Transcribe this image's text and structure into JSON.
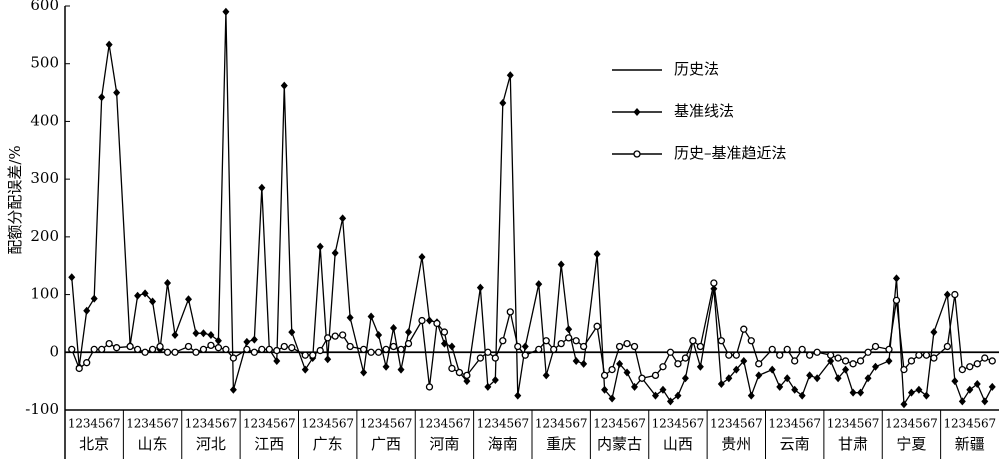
{
  "chart_data": {
    "type": "line",
    "y_label": "配额分配误差/%",
    "groups": [
      "北京",
      "山东",
      "河北",
      "江西",
      "广东",
      "广西",
      "河南",
      "海南",
      "重庆",
      "内蒙古",
      "山西",
      "贵州",
      "云南",
      "甘肃",
      "宁夏",
      "新疆"
    ],
    "sub_categories": [
      "1",
      "2",
      "3",
      "4",
      "5",
      "6",
      "7"
    ],
    "ylim": [
      -100,
      600
    ],
    "yticks": [
      -100,
      0,
      100,
      200,
      300,
      400,
      500,
      600
    ],
    "legend_position": "upper right",
    "series": [
      {
        "name": "历史法",
        "color": "#000000",
        "marker": "none",
        "values": [
          0,
          0,
          0,
          0,
          0,
          0,
          0,
          0,
          0,
          0,
          0,
          0,
          0,
          0,
          0,
          0,
          0,
          0,
          0,
          0,
          0,
          0,
          0,
          0,
          0,
          0,
          0,
          0,
          0,
          0,
          0,
          0,
          0,
          0,
          0,
          0,
          0,
          0,
          0,
          0,
          0,
          0,
          0,
          0,
          0,
          0,
          0,
          0,
          0,
          0,
          0,
          0,
          0,
          0,
          0,
          0,
          0,
          0,
          0,
          0,
          0,
          0,
          0,
          0,
          0,
          0,
          0,
          0,
          0,
          0,
          0,
          0,
          0,
          0,
          0,
          0,
          0,
          0,
          0,
          0,
          0,
          0,
          0,
          0,
          0,
          0,
          0,
          0,
          0,
          0,
          0,
          0,
          0,
          0,
          0,
          0,
          0,
          0,
          0,
          0,
          0,
          0,
          0,
          0,
          0,
          0,
          0,
          0,
          0,
          0,
          0,
          0
        ]
      },
      {
        "name": "基准线法",
        "color": "#000000",
        "marker": "diamond",
        "values": [
          130,
          -25,
          72,
          93,
          442,
          533,
          450,
          12,
          98,
          102,
          88,
          5,
          120,
          30,
          92,
          33,
          33,
          30,
          20,
          590,
          -65,
          18,
          22,
          285,
          5,
          -15,
          462,
          35,
          -30,
          -10,
          183,
          -12,
          172,
          232,
          60,
          -35,
          62,
          30,
          -25,
          42,
          -30,
          35,
          165,
          55,
          52,
          15,
          10,
          -35,
          -50,
          112,
          -60,
          -48,
          432,
          480,
          -75,
          10,
          118,
          -40,
          5,
          152,
          40,
          -15,
          -20,
          170,
          -65,
          -80,
          -20,
          -35,
          -60,
          -45,
          -75,
          -65,
          -85,
          -75,
          -45,
          20,
          -25,
          110,
          -55,
          -45,
          -30,
          -15,
          -75,
          -40,
          -30,
          -60,
          -45,
          -65,
          -75,
          -40,
          -45,
          -15,
          -45,
          -30,
          -70,
          -70,
          -45,
          -25,
          -15,
          128,
          -90,
          -70,
          -65,
          -75,
          35,
          100,
          -50,
          -85,
          -65,
          -55,
          -85,
          -60
        ]
      },
      {
        "name": "历史–基准趋近法",
        "color": "#000000",
        "marker": "circle",
        "values": [
          5,
          -28,
          -18,
          5,
          5,
          15,
          8,
          10,
          5,
          0,
          5,
          10,
          0,
          0,
          10,
          0,
          5,
          12,
          8,
          5,
          -10,
          5,
          0,
          5,
          5,
          3,
          10,
          8,
          -5,
          -5,
          3,
          25,
          28,
          30,
          10,
          5,
          0,
          0,
          5,
          10,
          5,
          15,
          55,
          -60,
          50,
          35,
          -28,
          -35,
          -40,
          -10,
          0,
          -10,
          20,
          70,
          10,
          -5,
          5,
          20,
          5,
          15,
          25,
          20,
          10,
          45,
          -40,
          -30,
          10,
          15,
          10,
          -45,
          -40,
          -25,
          0,
          -20,
          -10,
          20,
          10,
          120,
          20,
          -5,
          -5,
          40,
          20,
          -20,
          5,
          -5,
          5,
          -15,
          5,
          -5,
          0,
          -5,
          -10,
          -15,
          -20,
          -15,
          0,
          10,
          5,
          90,
          -30,
          -15,
          -5,
          -5,
          -10,
          10,
          100,
          -30,
          -25,
          -20,
          -10,
          -15
        ]
      }
    ]
  }
}
